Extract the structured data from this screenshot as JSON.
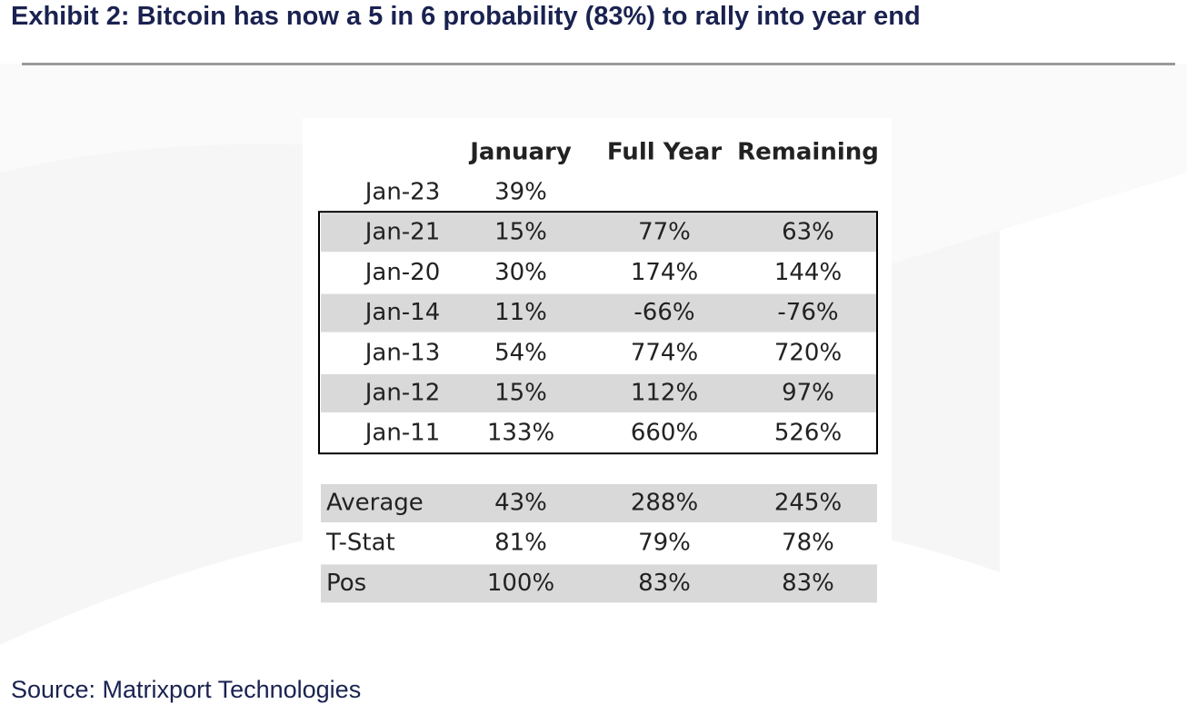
{
  "title": "Exhibit 2: Bitcoin has now a 5 in 6 probability (83%) to rally into year end",
  "source": "Source: Matrixport Technologies",
  "colors": {
    "title_text": "#1a2250",
    "row_shade": "#d9d9d9",
    "rule": "#9a9a9a",
    "table_border": "#000000"
  },
  "chart_data": {
    "type": "table",
    "columns": [
      "",
      "January",
      "Full Year",
      "Remaining"
    ],
    "rows": [
      [
        "Jan-23",
        "39%",
        "",
        ""
      ],
      [
        "Jan-21",
        "15%",
        "77%",
        "63%"
      ],
      [
        "Jan-20",
        "30%",
        "174%",
        "144%"
      ],
      [
        "Jan-14",
        "11%",
        "-66%",
        "-76%"
      ],
      [
        "Jan-13",
        "54%",
        "774%",
        "720%"
      ],
      [
        "Jan-12",
        "15%",
        "112%",
        "97%"
      ],
      [
        "Jan-11",
        "133%",
        "660%",
        "526%"
      ]
    ],
    "summary_rows": [
      [
        "Average",
        "43%",
        "288%",
        "245%"
      ],
      [
        "T-Stat",
        "81%",
        "79%",
        "78%"
      ],
      [
        "Pos",
        "100%",
        "83%",
        "83%"
      ]
    ]
  }
}
